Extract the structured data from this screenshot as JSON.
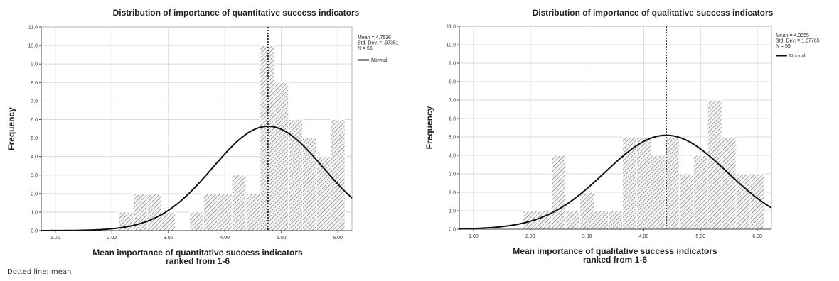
{
  "chart_data": [
    {
      "type": "bar",
      "title": "Distribution of importance of quantitative success indicators",
      "xlabel_lines": [
        "Mean importance of quantitative success indicators",
        "ranked from 1-6"
      ],
      "ylabel": "Frequency",
      "xlim": [
        0.75,
        6.25
      ],
      "ylim": [
        0,
        11
      ],
      "xticks": [
        "1.00",
        "2.00",
        "3.00",
        "4.00",
        "5.00",
        "6.00"
      ],
      "yticks": [
        "0.0",
        "1.0",
        "2.0",
        "3.0",
        "4.0",
        "5.0",
        "6.0",
        "7.0",
        "8.0",
        "9.0",
        "10.0",
        "11.0"
      ],
      "grid": true,
      "bin_width": 0.25,
      "bins": [
        {
          "x": 2.25,
          "count": 1
        },
        {
          "x": 2.5,
          "count": 2
        },
        {
          "x": 2.75,
          "count": 2
        },
        {
          "x": 3.0,
          "count": 1
        },
        {
          "x": 3.5,
          "count": 1
        },
        {
          "x": 3.75,
          "count": 2
        },
        {
          "x": 4.0,
          "count": 2
        },
        {
          "x": 4.25,
          "count": 3
        },
        {
          "x": 4.5,
          "count": 2
        },
        {
          "x": 4.75,
          "count": 10
        },
        {
          "x": 5.0,
          "count": 8
        },
        {
          "x": 5.25,
          "count": 6
        },
        {
          "x": 5.5,
          "count": 5
        },
        {
          "x": 5.75,
          "count": 4
        },
        {
          "x": 6.0,
          "count": 6
        }
      ],
      "mean": 4.7636,
      "sd": 0.97351,
      "n": 55,
      "stats": [
        "Mean = 4.7636",
        "Std. Dev. = .97351",
        "N = 55"
      ],
      "legend": "Normal"
    },
    {
      "type": "bar",
      "title": "Distribution of importance of qualitative success indicators",
      "xlabel_lines": [
        "Mean importance of qualitative success indicators",
        "ranked from 1-6"
      ],
      "ylabel": "Frequency",
      "xlim": [
        0.75,
        6.25
      ],
      "ylim": [
        0,
        11
      ],
      "xticks": [
        "1.00",
        "2.00",
        "3.00",
        "4.00",
        "5.00",
        "6.00"
      ],
      "yticks": [
        "0.0",
        "1.0",
        "2.0",
        "3.0",
        "4.0",
        "5.0",
        "6.0",
        "7.0",
        "8.0",
        "9.0",
        "10.0",
        "11.0"
      ],
      "grid": true,
      "bin_width": 0.25,
      "bins": [
        {
          "x": 2.0,
          "count": 1
        },
        {
          "x": 2.25,
          "count": 1
        },
        {
          "x": 2.5,
          "count": 4
        },
        {
          "x": 2.75,
          "count": 1
        },
        {
          "x": 3.0,
          "count": 2
        },
        {
          "x": 3.25,
          "count": 1
        },
        {
          "x": 3.5,
          "count": 1
        },
        {
          "x": 3.75,
          "count": 5
        },
        {
          "x": 4.0,
          "count": 5
        },
        {
          "x": 4.25,
          "count": 4
        },
        {
          "x": 4.5,
          "count": 5
        },
        {
          "x": 4.75,
          "count": 3
        },
        {
          "x": 5.0,
          "count": 4
        },
        {
          "x": 5.25,
          "count": 7
        },
        {
          "x": 5.5,
          "count": 5
        },
        {
          "x": 5.75,
          "count": 3
        },
        {
          "x": 6.0,
          "count": 3
        }
      ],
      "mean": 4.3955,
      "sd": 1.07765,
      "n": 55,
      "stats": [
        "Mean = 4.3955",
        "Std. Dev. = 1.07765",
        "N = 55"
      ],
      "legend": "Normal"
    }
  ],
  "footnote": "Dotted line: mean"
}
